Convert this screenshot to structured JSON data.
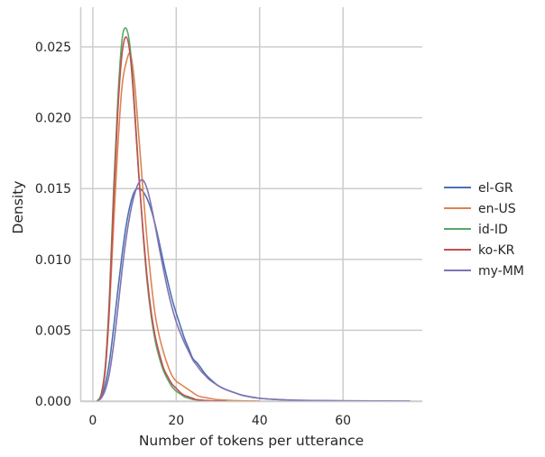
{
  "chart_data": {
    "type": "line",
    "subtype": "kde-density",
    "title": "",
    "xlabel": "Number of tokens per utterance",
    "ylabel": "Density",
    "xlim": [
      -3,
      79
    ],
    "ylim": [
      0,
      0.0278
    ],
    "xticks": [
      0,
      20,
      40,
      60
    ],
    "xtick_labels": [
      "0",
      "20",
      "40",
      "60"
    ],
    "yticks": [
      0,
      0.005,
      0.01,
      0.015,
      0.02,
      0.025
    ],
    "ytick_labels": [
      "0.000",
      "0.005",
      "0.010",
      "0.015",
      "0.020",
      "0.025"
    ],
    "grid": true,
    "legend_position": "right",
    "series": [
      {
        "name": "el-GR",
        "color": "#4c72b0",
        "x": [
          1,
          2,
          3,
          4,
          5,
          6,
          7,
          8,
          9,
          10,
          11,
          12,
          13,
          14,
          15,
          16,
          17,
          18,
          19,
          20,
          21,
          22,
          23,
          24,
          25,
          26,
          27,
          28,
          30,
          32,
          34,
          36,
          40,
          45,
          50,
          60,
          76
        ],
        "y": [
          0,
          0.0003,
          0.0012,
          0.0028,
          0.0052,
          0.0078,
          0.0103,
          0.0124,
          0.0139,
          0.0148,
          0.015,
          0.0148,
          0.0143,
          0.0135,
          0.0124,
          0.0111,
          0.0097,
          0.0084,
          0.0072,
          0.0062,
          0.0053,
          0.0044,
          0.0037,
          0.003,
          0.0027,
          0.0023,
          0.0019,
          0.0016,
          0.0011,
          0.0008,
          0.0006,
          0.0004,
          0.0002,
          0.0001,
          5e-05,
          2e-05,
          0
        ]
      },
      {
        "name": "en-US",
        "color": "#dd8452",
        "x": [
          1,
          2,
          3,
          4,
          5,
          6,
          7,
          8,
          9,
          10,
          11,
          12,
          13,
          14,
          15,
          16,
          17,
          18,
          19,
          20,
          21,
          22,
          23,
          24,
          25,
          26,
          28,
          30,
          35,
          40
        ],
        "y": [
          0,
          0.0004,
          0.0022,
          0.0065,
          0.0125,
          0.018,
          0.0222,
          0.0239,
          0.0245,
          0.0225,
          0.0188,
          0.015,
          0.0114,
          0.0084,
          0.006,
          0.0045,
          0.0034,
          0.0025,
          0.0018,
          0.0014,
          0.0012,
          0.001,
          0.0008,
          0.0006,
          0.0004,
          0.0003,
          0.0002,
          0.0001,
          3e-05,
          0
        ]
      },
      {
        "name": "id-ID",
        "color": "#55a868",
        "x": [
          1,
          2,
          3,
          4,
          5,
          6,
          7,
          8,
          9,
          10,
          11,
          12,
          13,
          14,
          15,
          16,
          17,
          18,
          19,
          20,
          21,
          22,
          23,
          24,
          25,
          28,
          32
        ],
        "y": [
          0,
          0.0005,
          0.0025,
          0.0075,
          0.015,
          0.0213,
          0.0255,
          0.0263,
          0.0248,
          0.0208,
          0.0162,
          0.012,
          0.0085,
          0.006,
          0.0042,
          0.003,
          0.0021,
          0.0015,
          0.001,
          0.0007,
          0.0005,
          0.0003,
          0.0002,
          0.00012,
          8e-05,
          2e-05,
          0
        ]
      },
      {
        "name": "ko-KR",
        "color": "#c44e52",
        "x": [
          1,
          2,
          3,
          4,
          5,
          6,
          7,
          8,
          9,
          10,
          11,
          12,
          13,
          14,
          15,
          16,
          17,
          18,
          19,
          20,
          21,
          22,
          23,
          24,
          25,
          28,
          32
        ],
        "y": [
          0,
          0.0004,
          0.0023,
          0.007,
          0.0142,
          0.0205,
          0.0245,
          0.0257,
          0.0243,
          0.0205,
          0.016,
          0.0122,
          0.0088,
          0.0063,
          0.0045,
          0.0033,
          0.0023,
          0.0017,
          0.0012,
          0.0009,
          0.0006,
          0.0004,
          0.0003,
          0.0002,
          0.0001,
          3e-05,
          0
        ]
      },
      {
        "name": "my-MM",
        "color": "#8172b3",
        "x": [
          1,
          2,
          3,
          4,
          5,
          6,
          7,
          8,
          9,
          10,
          11,
          12,
          13,
          14,
          15,
          16,
          17,
          18,
          19,
          20,
          21,
          22,
          23,
          24,
          25,
          26,
          27,
          28,
          30,
          32,
          34,
          36,
          40,
          45,
          50,
          60,
          76
        ],
        "y": [
          0,
          0.0002,
          0.0008,
          0.002,
          0.004,
          0.0065,
          0.0092,
          0.0115,
          0.0133,
          0.0146,
          0.0154,
          0.0156,
          0.015,
          0.0138,
          0.0123,
          0.0107,
          0.0092,
          0.0078,
          0.0066,
          0.0056,
          0.0048,
          0.0041,
          0.0035,
          0.0029,
          0.0025,
          0.0021,
          0.0018,
          0.0015,
          0.0011,
          0.0008,
          0.0006,
          0.0004,
          0.0002,
          0.0001,
          5e-05,
          2e-05,
          0
        ]
      }
    ]
  }
}
